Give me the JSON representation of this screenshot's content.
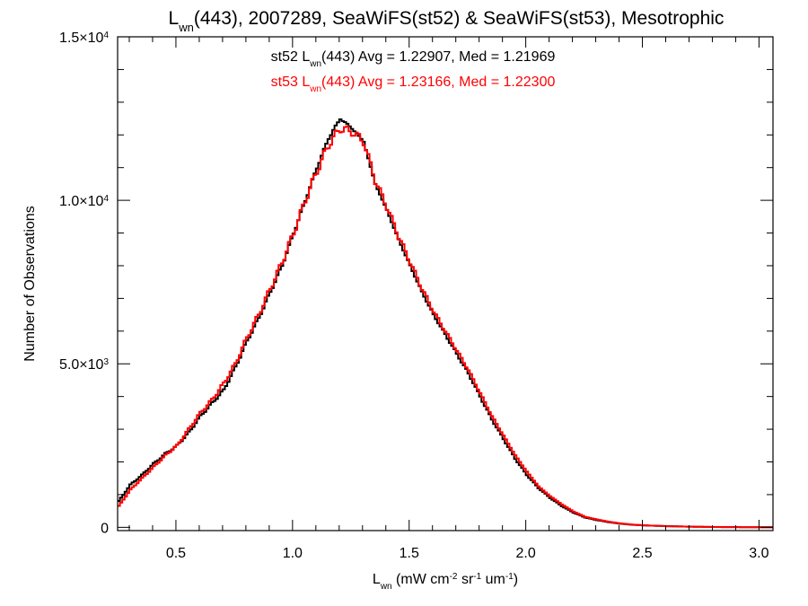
{
  "chart_data": {
    "type": "line",
    "title": {
      "main": "L",
      "sub": "wn",
      "rest": "(443), 2007289, SeaWiFS(st52) & SeaWiFS(st53), Mesotrophic"
    },
    "xlabel": {
      "main": "L",
      "sub": "wn",
      "p1": " (mW cm",
      "sup1": "-2",
      "p2": " sr",
      "sup2": "-1",
      "p3": " um",
      "sup3": "-1",
      "p4": ")"
    },
    "ylabel": "Number of Observations",
    "xlim": [
      0.25,
      3.06
    ],
    "ylim": [
      -100,
      15000
    ],
    "xticks": [
      {
        "value": 0.5,
        "label": "0.5"
      },
      {
        "value": 1.0,
        "label": "1.0"
      },
      {
        "value": 1.5,
        "label": "1.5"
      },
      {
        "value": 2.0,
        "label": "2.0"
      },
      {
        "value": 2.5,
        "label": "2.5"
      },
      {
        "value": 3.0,
        "label": "3.0"
      }
    ],
    "yticks": [
      {
        "value": 0,
        "mant": "0",
        "exp": ""
      },
      {
        "value": 5000,
        "mant": "5.0×10",
        "exp": "3"
      },
      {
        "value": 10000,
        "mant": "1.0×10",
        "exp": "4"
      },
      {
        "value": 15000,
        "mant": "1.5×10",
        "exp": "4"
      }
    ],
    "series": [
      {
        "name": "st52",
        "color": "#000000",
        "stats_label": {
          "pre": "st52 L",
          "sub": "wn",
          "post": "(443) Avg = 1.22907, Med = 1.21969"
        },
        "x": [
          0.25,
          0.3,
          0.35,
          0.4,
          0.45,
          0.5,
          0.55,
          0.6,
          0.65,
          0.7,
          0.75,
          0.8,
          0.85,
          0.9,
          0.95,
          1.0,
          1.05,
          1.1,
          1.15,
          1.2,
          1.25,
          1.3,
          1.35,
          1.4,
          1.45,
          1.5,
          1.55,
          1.6,
          1.65,
          1.7,
          1.75,
          1.8,
          1.85,
          1.9,
          1.95,
          2.0,
          2.05,
          2.1,
          2.15,
          2.2,
          2.25,
          2.3,
          2.35,
          2.4,
          2.45,
          2.5,
          2.6,
          2.7,
          2.8,
          2.9,
          3.0,
          3.06
        ],
        "y": [
          800,
          1300,
          1600,
          1950,
          2250,
          2500,
          2900,
          3400,
          3800,
          4200,
          4900,
          5700,
          6400,
          7200,
          8000,
          9000,
          10000,
          11000,
          11900,
          12500,
          12200,
          11800,
          10500,
          9700,
          8800,
          8000,
          7200,
          6500,
          5900,
          5300,
          4700,
          4000,
          3300,
          2700,
          2100,
          1600,
          1200,
          900,
          650,
          450,
          300,
          220,
          160,
          110,
          80,
          60,
          35,
          20,
          10,
          5,
          3,
          2
        ]
      },
      {
        "name": "st53",
        "color": "#ff0000",
        "stats_label": {
          "pre": "st53 L",
          "sub": "wn",
          "post": "(443) Avg = 1.23166, Med = 1.22300"
        },
        "x": [
          0.25,
          0.3,
          0.35,
          0.4,
          0.45,
          0.5,
          0.55,
          0.6,
          0.65,
          0.7,
          0.75,
          0.8,
          0.85,
          0.9,
          0.95,
          1.0,
          1.05,
          1.1,
          1.15,
          1.2,
          1.25,
          1.3,
          1.35,
          1.4,
          1.45,
          1.5,
          1.55,
          1.6,
          1.65,
          1.7,
          1.75,
          1.8,
          1.85,
          1.9,
          1.95,
          2.0,
          2.05,
          2.1,
          2.15,
          2.2,
          2.25,
          2.3,
          2.35,
          2.4,
          2.45,
          2.5,
          2.6,
          2.7,
          2.8,
          2.9,
          3.0,
          3.06
        ],
        "y": [
          650,
          1150,
          1500,
          1850,
          2200,
          2500,
          3000,
          3500,
          3900,
          4400,
          5000,
          5800,
          6500,
          7300,
          8100,
          9000,
          10000,
          10900,
          11700,
          12200,
          12100,
          11800,
          10600,
          9800,
          8900,
          8100,
          7300,
          6600,
          6000,
          5400,
          4800,
          4100,
          3400,
          2800,
          2200,
          1700,
          1250,
          950,
          700,
          480,
          320,
          240,
          170,
          120,
          85,
          60,
          35,
          20,
          10,
          5,
          3,
          2
        ]
      }
    ],
    "grid": false,
    "legend": "top-center"
  }
}
